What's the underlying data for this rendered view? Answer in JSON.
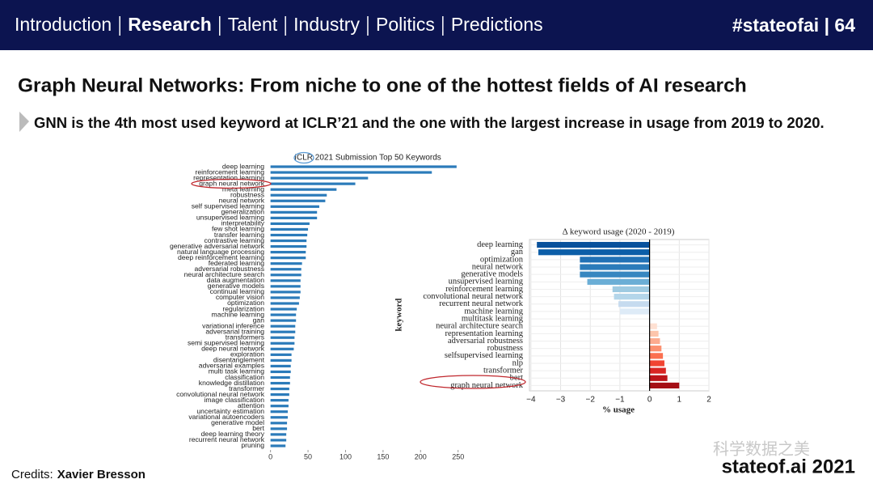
{
  "header": {
    "nav": [
      "Introduction",
      "Research",
      "Talent",
      "Industry",
      "Politics",
      "Predictions"
    ],
    "active": 1,
    "tag": "#stateofai | 64"
  },
  "title": "Graph Neural Networks: From niche to one of the hottest fields of AI research",
  "subtitle": "GNN is the 4th most used keyword at ICLR’21 and the one with the largest increase in usage from 2019 to 2020.",
  "chart_data": [
    {
      "type": "barh",
      "title": "ICLR 2021 Submission Top 50 Keywords",
      "color": "#2b7bba",
      "categories": [
        "deep learning",
        "reinforcement learning",
        "representation learning",
        "graph neural network",
        "meta learning",
        "robustness",
        "neural network",
        "self supervised learning",
        "generalization",
        "unsupervised learning",
        "interpretability",
        "few shot learning",
        "transfer learning",
        "contrastive learning",
        "generative adversarial network",
        "natural language processing",
        "deep reinforcement learning",
        "federated learning",
        "adversarial robustness",
        "neural architecture search",
        "data augmentation",
        "generative models",
        "continual learning",
        "computer vision",
        "optimization",
        "regularization",
        "machine learning",
        "gan",
        "variational inference",
        "adversarial training",
        "transformers",
        "semi supervised learning",
        "deep neural network",
        "exploration",
        "disentanglement",
        "adversarial examples",
        "multi task learning",
        "classification",
        "knowledge distillation",
        "transformer",
        "convolutional neural network",
        "image classification",
        "attention",
        "uncertainty estimation",
        "variational autoencoders",
        "generative model",
        "bert",
        "deep learning theory",
        "recurrent neural network",
        "pruning"
      ],
      "values": [
        248,
        215,
        130,
        113,
        88,
        75,
        73,
        65,
        62,
        62,
        52,
        50,
        49,
        48,
        48,
        47,
        47,
        42,
        41,
        41,
        40,
        40,
        40,
        39,
        38,
        35,
        34,
        34,
        33,
        33,
        32,
        32,
        31,
        28,
        28,
        27,
        27,
        26,
        26,
        25,
        25,
        24,
        24,
        23,
        23,
        22,
        22,
        21,
        21,
        20
      ],
      "xlim": [
        -5,
        260
      ],
      "xticks": [
        0,
        50,
        100,
        150,
        200,
        250
      ]
    },
    {
      "type": "barh-diverging",
      "title": "Δ keyword usage (2020 - 2019)",
      "xlabel": "% usage",
      "ylabel": "keyword",
      "categories": [
        "deep learning",
        "gan",
        "optimization",
        "neural network",
        "generative models",
        "unsupervised learning",
        "reinforcement learning",
        "convolutional neural network",
        "recurrent neural network",
        "machine learning",
        "multitask learning",
        "neural architecture search",
        "representation learning",
        "adversarial robustness",
        "robustness",
        "selfsupervised learning",
        "nlp",
        "transformer",
        "bert",
        "graph neural network"
      ],
      "values": [
        -3.8,
        -3.75,
        -2.35,
        -2.35,
        -2.35,
        -2.1,
        -1.25,
        -1.2,
        -1.05,
        -1.0,
        0,
        0.25,
        0.3,
        0.35,
        0.4,
        0.45,
        0.5,
        0.55,
        0.6,
        1.0
      ],
      "colors": [
        "#08519c",
        "#0c5ea8",
        "#2171b5",
        "#2b7bba",
        "#3787c0",
        "#6baed6",
        "#9ecae1",
        "#b4d6ea",
        "#c6dbef",
        "#deebf7",
        "#f7fbff",
        "#fee0d2",
        "#fdc5ab",
        "#fcab8f",
        "#fc9070",
        "#fb7050",
        "#f14432",
        "#d92523",
        "#bc141a",
        "#a50f15"
      ],
      "xlim": [
        -4.05,
        2
      ],
      "xticks": [
        {
          "value": -4,
          "label": "−4"
        },
        {
          "value": -3,
          "label": "−3"
        },
        {
          "value": -2,
          "label": "−2"
        },
        {
          "value": -1,
          "label": "−1"
        },
        0,
        1,
        2
      ]
    }
  ],
  "credits": {
    "label": "Credits:",
    "name": "Xavier Bresson"
  },
  "watermark": "科学数据之美",
  "footer": "stateof.ai 2021"
}
